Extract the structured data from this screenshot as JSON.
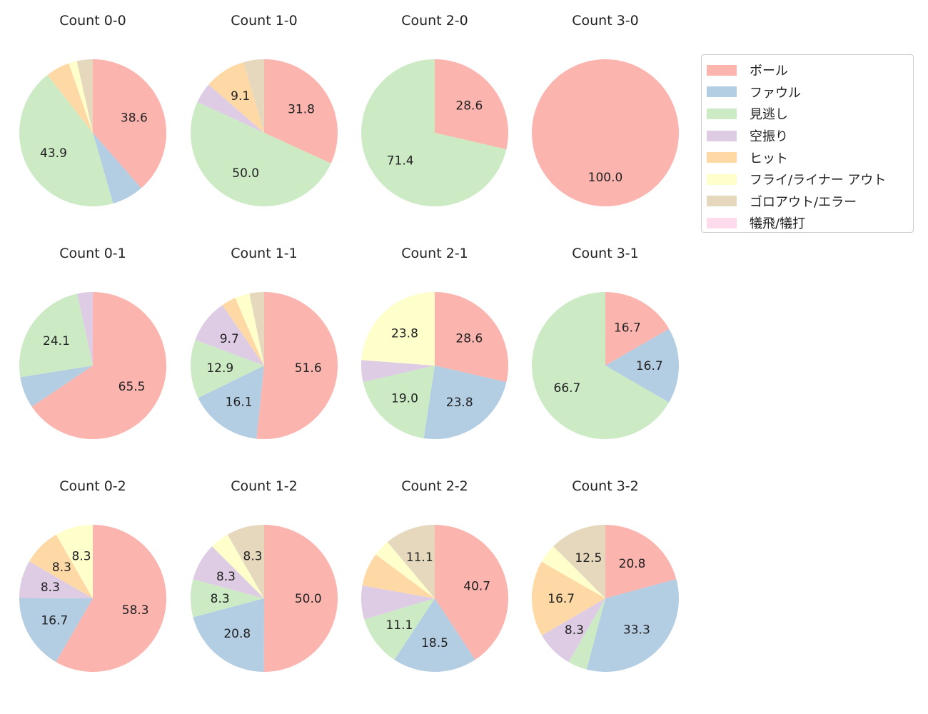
{
  "chart_data": {
    "type": "pie",
    "categories": [
      "ボール",
      "ファウル",
      "見逃し",
      "空振り",
      "ヒット",
      "フライ/ライナー アウト",
      "ゴロアウト/エラー",
      "犠飛/犠打"
    ],
    "colors": [
      "#fbb4ae",
      "#b3cde3",
      "#ccebc5",
      "#decbe4",
      "#fed9a6",
      "#ffffcc",
      "#e5d8bd",
      "#fddaec"
    ],
    "legend_position": "right",
    "start_angle": 90,
    "direction": "clockwise",
    "label_threshold": 8,
    "pies": [
      {
        "title": "Count 0-0",
        "values": [
          38.6,
          7.0,
          43.9,
          0,
          5.3,
          1.8,
          3.5,
          0
        ]
      },
      {
        "title": "Count 1-0",
        "values": [
          31.8,
          0,
          50.0,
          4.5,
          9.1,
          0,
          4.5,
          0
        ]
      },
      {
        "title": "Count 2-0",
        "values": [
          28.6,
          0,
          71.4,
          0,
          0,
          0,
          0,
          0
        ]
      },
      {
        "title": "Count 3-0",
        "values": [
          100.0,
          0,
          0,
          0,
          0,
          0,
          0,
          0
        ]
      },
      {
        "title": "Count 0-1",
        "values": [
          65.5,
          6.9,
          24.1,
          3.4,
          0,
          0,
          0,
          0
        ]
      },
      {
        "title": "Count 1-1",
        "values": [
          51.6,
          16.1,
          12.9,
          9.7,
          3.2,
          3.2,
          3.2,
          0
        ]
      },
      {
        "title": "Count 2-1",
        "values": [
          28.6,
          23.8,
          19.0,
          4.8,
          0,
          23.8,
          0,
          0
        ]
      },
      {
        "title": "Count 3-1",
        "values": [
          16.7,
          16.7,
          66.7,
          0,
          0,
          0,
          0,
          0
        ]
      },
      {
        "title": "Count 0-2",
        "values": [
          58.3,
          16.7,
          0,
          8.3,
          8.3,
          8.3,
          0,
          0
        ]
      },
      {
        "title": "Count 1-2",
        "values": [
          50.0,
          20.8,
          8.3,
          8.3,
          0,
          4.2,
          8.3,
          0
        ]
      },
      {
        "title": "Count 2-2",
        "values": [
          40.7,
          18.5,
          11.1,
          7.4,
          7.4,
          3.7,
          11.1,
          0
        ]
      },
      {
        "title": "Count 3-2",
        "values": [
          20.8,
          33.3,
          4.2,
          8.3,
          16.7,
          4.2,
          12.5,
          0
        ]
      }
    ]
  }
}
